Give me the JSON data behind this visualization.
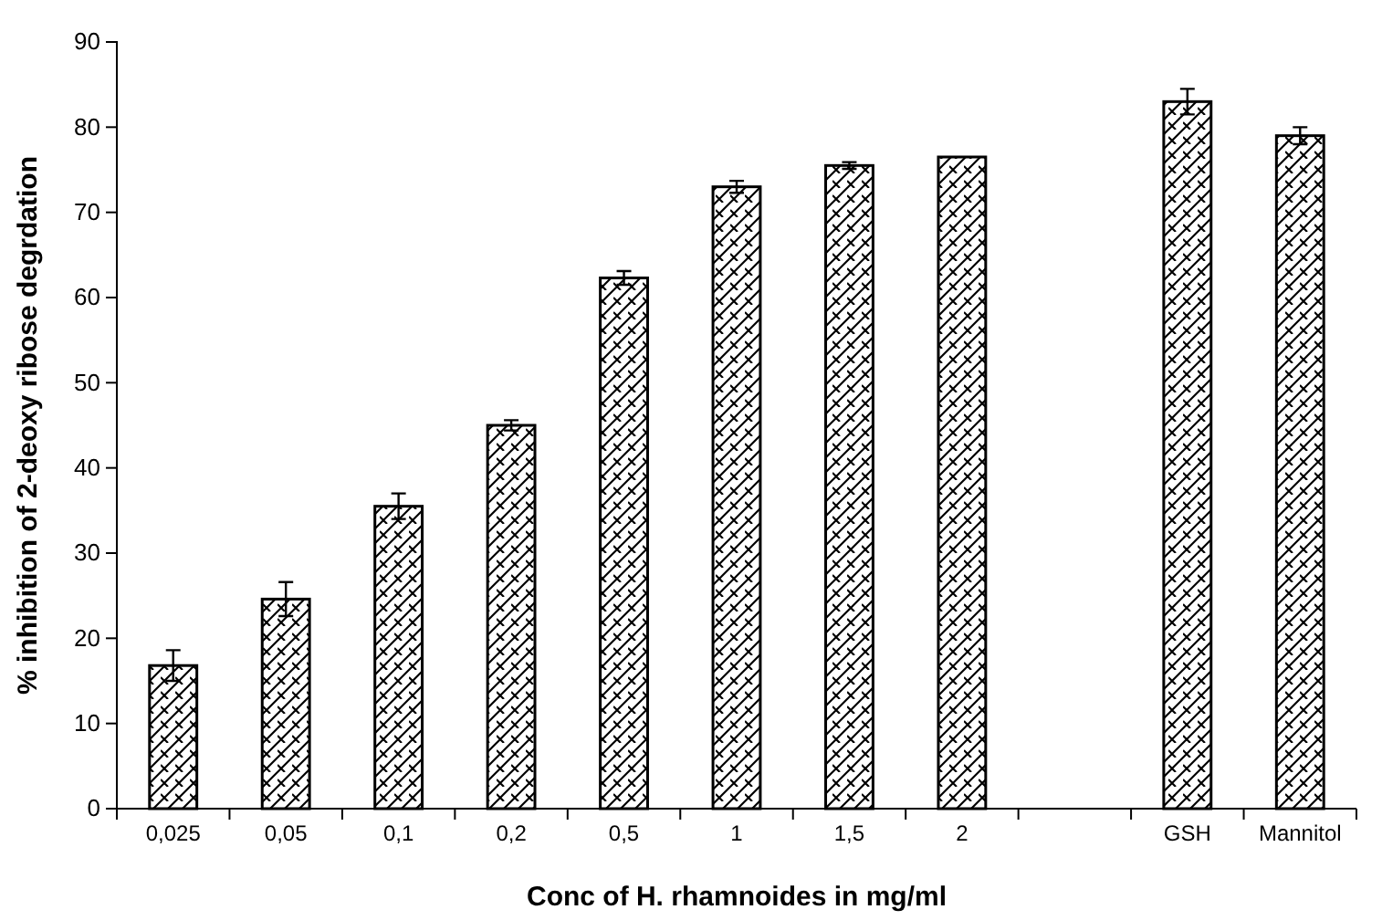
{
  "chart_data": {
    "type": "bar",
    "xlabel": "Conc of H. rhamnoides in mg/ml",
    "ylabel": "% inhibition of 2-deoxy ribose degrdation",
    "categories": [
      "0,025",
      "0,05",
      "0,1",
      "0,2",
      "0,5",
      "1",
      "1,5",
      "2",
      null,
      "GSH",
      "Mannitol"
    ],
    "values": [
      16.8,
      24.6,
      35.5,
      45,
      62.3,
      73,
      75.5,
      76.5,
      null,
      83,
      79
    ],
    "errors": [
      1.8,
      2,
      1.5,
      0.6,
      0.8,
      0.7,
      0.4,
      null,
      null,
      1.5,
      1
    ],
    "color": "#000000",
    "ylim": [
      0,
      90
    ],
    "yticks": [
      0,
      10,
      20,
      30,
      40,
      50,
      60,
      70,
      80,
      90
    ],
    "grid": false
  }
}
